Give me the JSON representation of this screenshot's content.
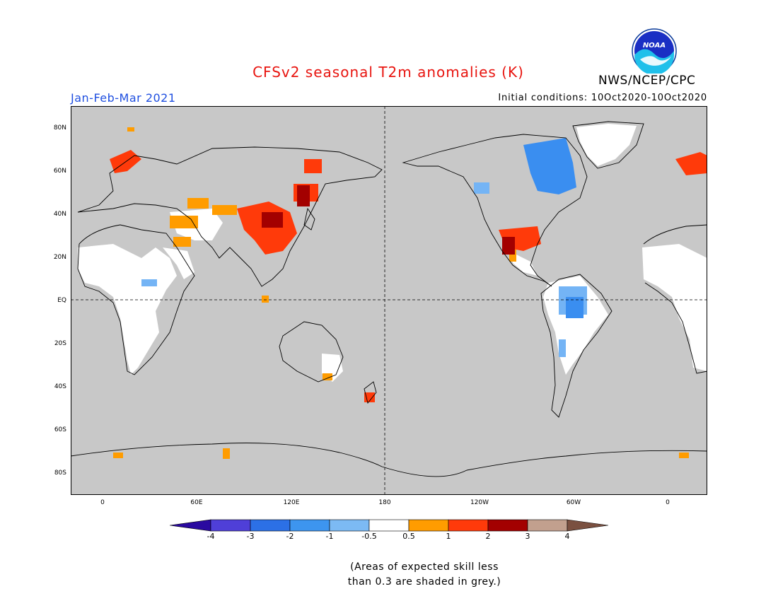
{
  "header": {
    "title": "CFSv2 seasonal T2m anomalies (K)",
    "period": "Jan-Feb-Mar 2021",
    "initial_conditions": "Initial conditions: 10Oct2020-10Oct2020",
    "agency": "NWS/NCEP/CPC",
    "logo_text": "NOAA"
  },
  "axes": {
    "lat_labels": [
      "80N",
      "60N",
      "40N",
      "20N",
      "EQ",
      "20S",
      "40S",
      "60S",
      "80S"
    ],
    "lon_labels": [
      "0",
      "60E",
      "120E",
      "180",
      "120W",
      "60W",
      "0"
    ]
  },
  "colors": {
    "skill_grey": "#c8c8c8",
    "neutral": "#ffffff",
    "warm_0_5_1": "#ff9c00",
    "warm_1_2": "#ff3a0a",
    "warm_2_3": "#a30000",
    "cool_neg1_neg0_5": "#74b4f5",
    "cool_neg2_neg1": "#3a8ef0"
  },
  "colorbar": {
    "labels": [
      "-4",
      "-3",
      "-2",
      "-1",
      "-0.5",
      "0.5",
      "1",
      "2",
      "3",
      "4"
    ],
    "colors": [
      "#2d0cb0",
      "#4f3fd8",
      "#2c70e6",
      "#3d95ef",
      "#7cbaf4",
      "#ffffff",
      "#ff9c00",
      "#ff3a0a",
      "#a30000",
      "#c2a08e"
    ],
    "low_end_color": "#2a0aa0",
    "high_end_color": "#7a5040"
  },
  "note": {
    "line1": "(Areas of expected skill less",
    "line2": "than 0.3 are shaded in grey.)"
  }
}
